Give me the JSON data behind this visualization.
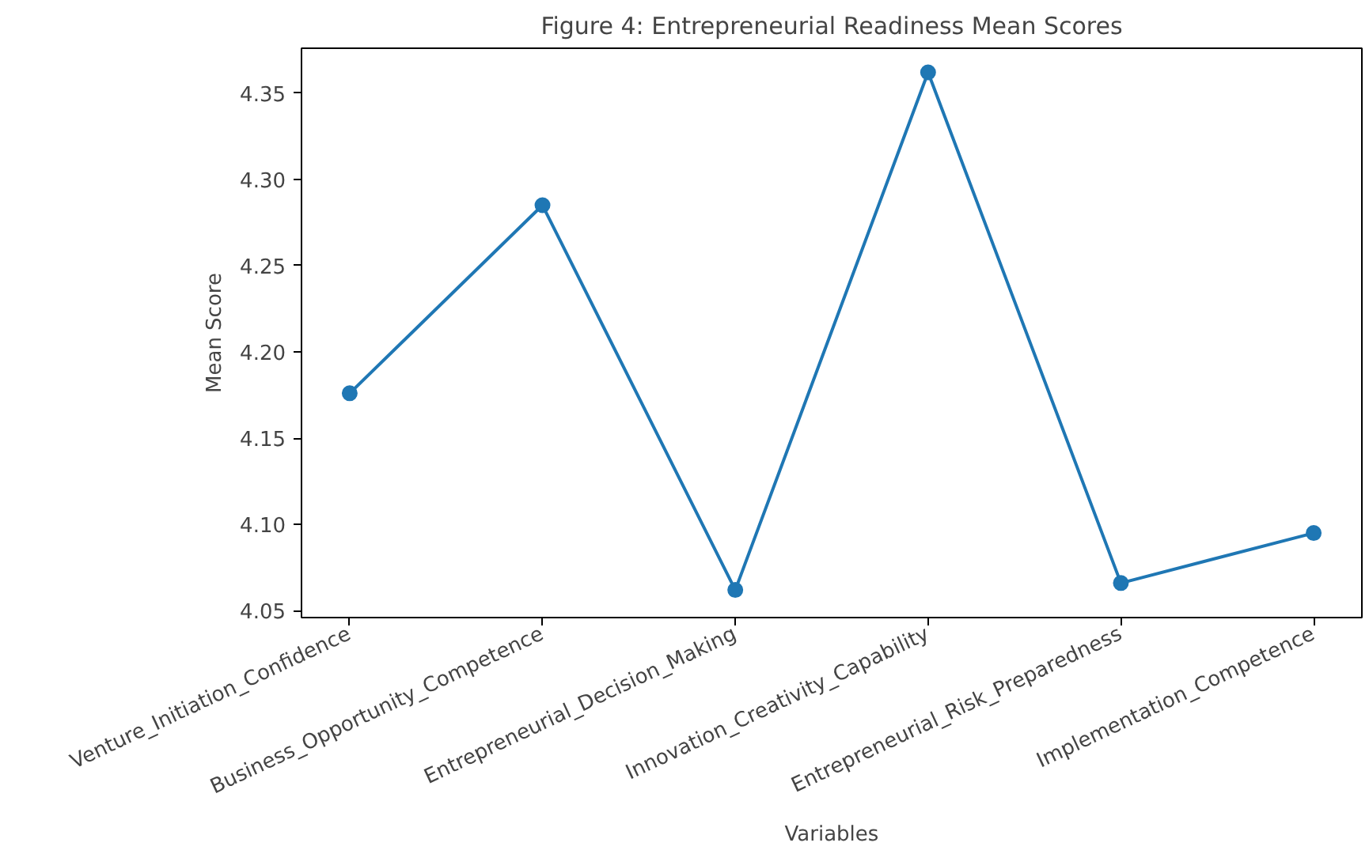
{
  "chart_data": {
    "type": "line",
    "title": "Figure 4: Entrepreneurial Readiness Mean Scores",
    "xlabel": "Variables",
    "ylabel": "Mean Score",
    "categories": [
      "Venture_Initiation_Confidence",
      "Business_Opportunity_Competence",
      "Entrepreneurial_Decision_Making",
      "Innovation_Creativity_Capability",
      "Entrepreneurial_Risk_Preparedness",
      "Implementation_Competence"
    ],
    "series": [
      {
        "color": "#1f77b4",
        "values": [
          4.176,
          4.285,
          4.062,
          4.362,
          4.066,
          4.095
        ]
      }
    ],
    "ylim": [
      4.046,
      4.376
    ],
    "yticks": [
      {
        "value": 4.05,
        "label": "4.05"
      },
      {
        "value": 4.1,
        "label": "4.10"
      },
      {
        "value": 4.15,
        "label": "4.15"
      },
      {
        "value": 4.2,
        "label": "4.20"
      },
      {
        "value": 4.25,
        "label": "4.25"
      },
      {
        "value": 4.3,
        "label": "4.30"
      },
      {
        "value": 4.35,
        "label": "4.35"
      }
    ],
    "marker": "circle",
    "line_style": "solid"
  }
}
